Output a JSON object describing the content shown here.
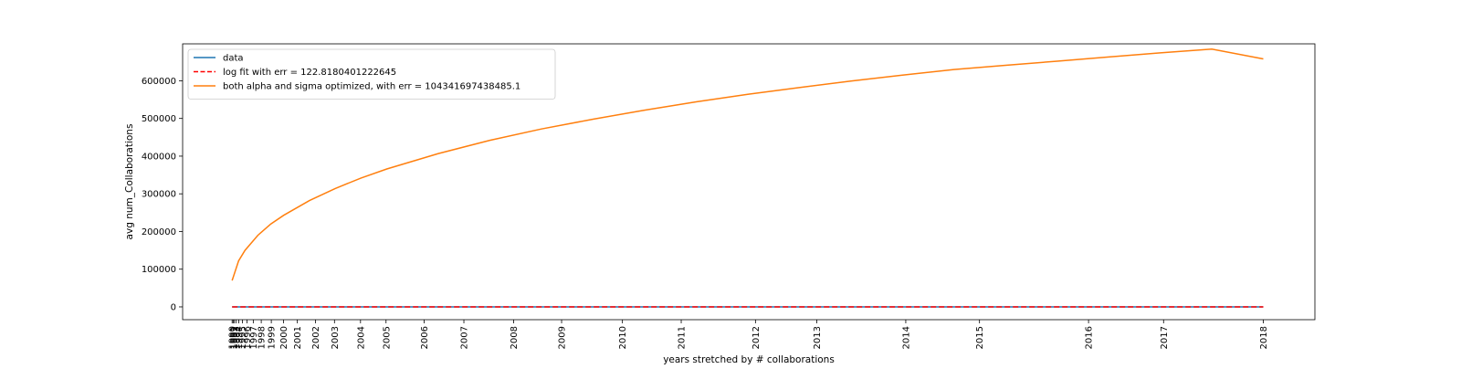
{
  "chart_data": {
    "type": "line",
    "title": "",
    "xlabel": "years stretched by # collaborations",
    "ylabel": "avg num_Collaborations",
    "ylim": [
      -34000,
      698000
    ],
    "grid": false,
    "legend_position": "top-left",
    "y_ticks": [
      0,
      100000,
      200000,
      300000,
      400000,
      500000,
      600000
    ],
    "y_tick_labels": [
      "0",
      "100000",
      "200000",
      "300000",
      "400000",
      "500000",
      "600000"
    ],
    "x_ticks": [
      {
        "label": "1990",
        "value": 0.0
      },
      {
        "label": "1991",
        "value": 0.04
      },
      {
        "label": "1992",
        "value": 0.09
      },
      {
        "label": "1993",
        "value": 0.16
      },
      {
        "label": "1994",
        "value": 0.26
      },
      {
        "label": "1995",
        "value": 0.4
      },
      {
        "label": "1996",
        "value": 0.58
      },
      {
        "label": "1997",
        "value": 0.82
      },
      {
        "label": "1998",
        "value": 1.13
      },
      {
        "label": "1999",
        "value": 1.52
      },
      {
        "label": "2000",
        "value": 1.99
      },
      {
        "label": "2001",
        "value": 2.53
      },
      {
        "label": "2002",
        "value": 3.23
      },
      {
        "label": "2003",
        "value": 3.97
      },
      {
        "label": "2004",
        "value": 4.98
      },
      {
        "label": "2005",
        "value": 5.97
      },
      {
        "label": "2006",
        "value": 7.45
      },
      {
        "label": "2007",
        "value": 8.99
      },
      {
        "label": "2008",
        "value": 10.92
      },
      {
        "label": "2009",
        "value": 12.78
      },
      {
        "label": "2010",
        "value": 15.14
      },
      {
        "label": "2011",
        "value": 17.42
      },
      {
        "label": "2012",
        "value": 20.3
      },
      {
        "label": "2013",
        "value": 22.68
      },
      {
        "label": "2014",
        "value": 26.13
      },
      {
        "label": "2015",
        "value": 28.99
      },
      {
        "label": "2016",
        "value": 33.22
      },
      {
        "label": "2017",
        "value": 36.13
      },
      {
        "label": "2018",
        "value": 40.0
      }
    ],
    "xlim": [
      -1.92,
      42.0
    ],
    "series": [
      {
        "name": "data",
        "color": "#1f77b4",
        "style": "solid",
        "x": [
          0,
          40
        ],
        "y": [
          0,
          0
        ]
      },
      {
        "name": "log fit with err = 122.8180401222645",
        "color": "#ff0000",
        "style": "dashed",
        "x": [
          0,
          40
        ],
        "y": [
          0,
          0
        ]
      },
      {
        "name": "both alpha and sigma optimized, with err = 104341697438485.1",
        "color": "#ff7f0e",
        "style": "solid",
        "x": [
          0,
          0.25,
          0.5,
          1,
          1.5,
          2,
          3,
          4,
          5,
          6,
          8,
          10,
          12,
          14,
          16,
          18,
          20,
          22,
          24,
          26,
          28,
          30,
          32,
          34,
          36,
          38,
          40
        ],
        "y": [
          70000,
          122000,
          150000,
          190000,
          220000,
          243000,
          282000,
          314000,
          342000,
          366000,
          407000,
          442000,
          472000,
          498000,
          522000,
          544000,
          564000,
          582000,
          599000,
          615000,
          630000,
          641000,
          652000,
          663000,
          674000,
          684000,
          658000
        ]
      }
    ]
  }
}
